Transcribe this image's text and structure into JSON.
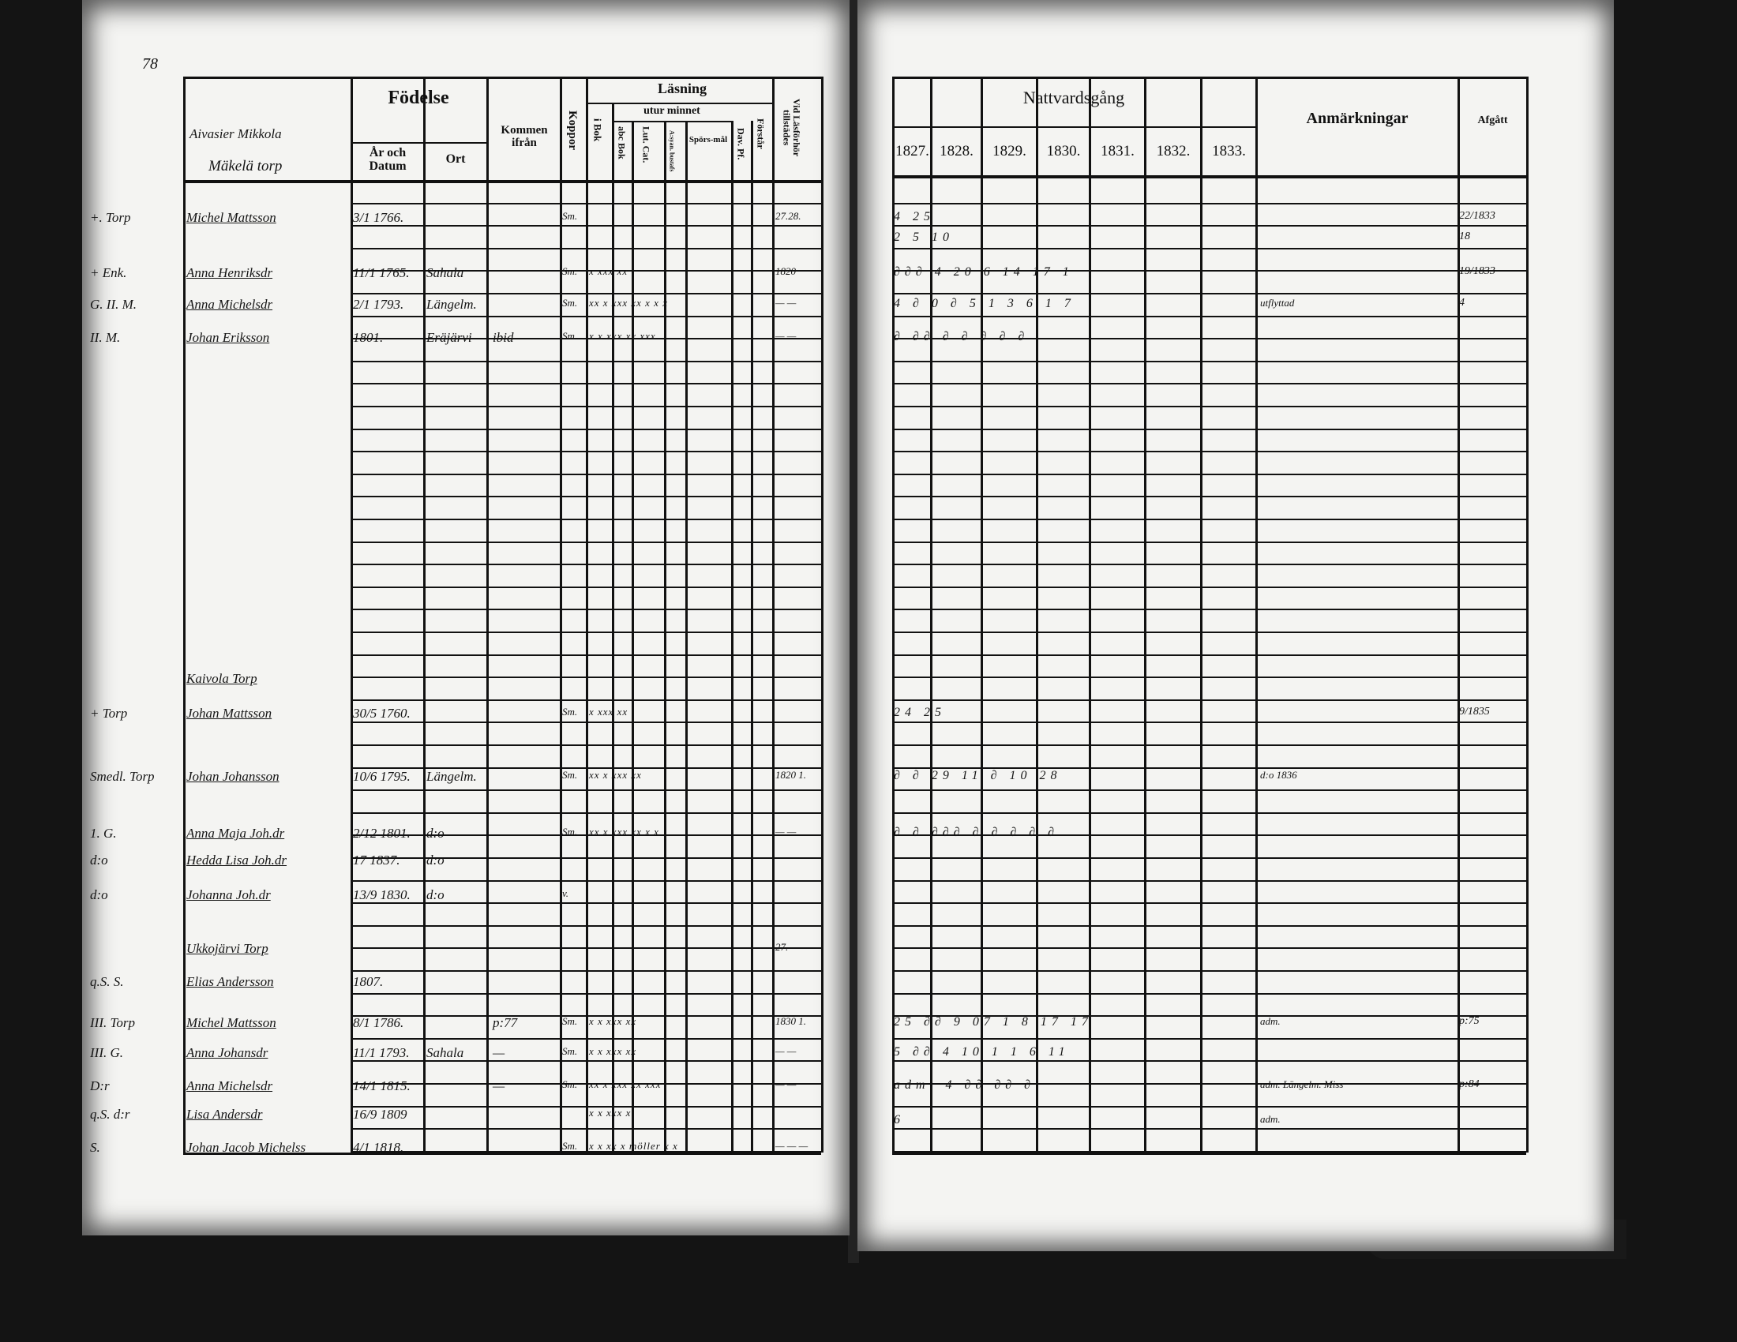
{
  "left_page": {
    "page_number": "78",
    "headers": {
      "name_title": "Aivasier Mikkola",
      "name_subtitle": "Mäkelä torp",
      "fodelse": "Födelse",
      "ar_och_datum": "År och Datum",
      "ort": "Ort",
      "kommen_ifran": "Kommen ifrån",
      "koppor": "Koppor",
      "lasning": "Läsning",
      "i_bok": "i Bok",
      "utur_minnet": "utur minnet",
      "abc_bok": "abc Bok",
      "lut_cat": "Lut. Cat.",
      "a_syan_bustafs": "A:syan. bustafs",
      "sporsmal": "Spörs-mål",
      "dav_pf": "Dav. Pf.",
      "forstar": "Förstår",
      "vid_lasforhor": "Vid Läsförhör tillstädes"
    },
    "rows": [
      {
        "margin": "+. Torp",
        "name": "Michel Mattsson",
        "date": "3/1 1766.",
        "ort": "",
        "kommen": "",
        "koppor": "Sm.",
        "lasning": "",
        "vid": "27.28."
      },
      {
        "margin": "+ Enk.",
        "name": "Anna Henriksdr",
        "date": "11/1 1765.",
        "ort": "Sahala",
        "kommen": "",
        "koppor": "Sm.",
        "lasning": "x xxx xx",
        "vid": "1820"
      },
      {
        "margin": "G. II. M.",
        "name": "Anna Michelsdr",
        "date": "2/1 1793.",
        "ort": "Längelm.",
        "kommen": "",
        "koppor": "Sm.",
        "lasning": "xx x xxx xx x x x",
        "vid": "— —"
      },
      {
        "margin": "II. M.",
        "name": "Johan Eriksson",
        "date": "1801.",
        "ort": "Eräjärvi",
        "kommen": "ibid",
        "koppor": "Sm.",
        "lasning": "x x xxx xx xxx",
        "vid": "— —"
      },
      {
        "margin": "",
        "name": "Kaivola Torp",
        "date": "",
        "ort": "",
        "kommen": "",
        "koppor": "",
        "lasning": "",
        "vid": ""
      },
      {
        "margin": "+ Torp",
        "name": "Johan Mattsson",
        "date": "30/5 1760.",
        "ort": "",
        "kommen": "",
        "koppor": "Sm.",
        "lasning": "x xxx xx",
        "vid": ""
      },
      {
        "margin": "Smedl. Torp",
        "name": "Johan Johansson",
        "date": "10/6 1795.",
        "ort": "Längelm.",
        "kommen": "",
        "koppor": "Sm.",
        "lasning": "xx x xxx xx",
        "vid": "1820 1."
      },
      {
        "margin": "1. G.",
        "name": "Anna Maja Joh.dr",
        "date": "2/12 1801.",
        "ort": "d:o",
        "kommen": "",
        "koppor": "Sm.",
        "lasning": "xx x xxx xx x x",
        "vid": "— —"
      },
      {
        "margin": "d:o",
        "name": "Hedda Lisa Joh.dr",
        "date": "17 1837.",
        "ort": "d:o",
        "kommen": "",
        "koppor": "",
        "lasning": "",
        "vid": ""
      },
      {
        "margin": "d:o",
        "name": "Johanna Joh.dr",
        "date": "13/9 1830.",
        "ort": "d:o",
        "kommen": "",
        "koppor": "v.",
        "lasning": "",
        "vid": ""
      },
      {
        "margin": "",
        "name": "Ukkojärvi Torp",
        "date": "",
        "ort": "",
        "kommen": "",
        "koppor": "",
        "lasning": "",
        "vid": "27."
      },
      {
        "margin": "q.S. S.",
        "name": "Elias Andersson",
        "date": "1807.",
        "ort": "",
        "kommen": "",
        "koppor": "",
        "lasning": "",
        "vid": ""
      },
      {
        "margin": "III. Torp",
        "name": "Michel Mattsson",
        "date": "8/1 1786.",
        "ort": "",
        "kommen": "p:77",
        "koppor": "Sm.",
        "lasning": "x x xxx xx",
        "vid": "1830 1."
      },
      {
        "margin": "III. G.",
        "name": "Anna Johansdr",
        "date": "11/1 1793.",
        "ort": "Sahala",
        "kommen": "—",
        "koppor": "Sm.",
        "lasning": "x x xxx xx",
        "vid": "— —"
      },
      {
        "margin": "D:r",
        "name": "Anna Michelsdr",
        "date": "14/1 1815.",
        "ort": "",
        "kommen": "—",
        "koppor": "Sm.",
        "lasning": "xx x xxx xx xxx",
        "vid": "— —"
      },
      {
        "margin": "q.S. d:r",
        "name": "Lisa Andersdr",
        "date": "16/9 1809",
        "ort": "",
        "kommen": "",
        "koppor": "",
        "lasning": "x x xxx x",
        "vid": ""
      },
      {
        "margin": "S.",
        "name": "Johan Jacob Michelss",
        "date": "4/1 1818.",
        "ort": "",
        "kommen": "",
        "koppor": "Sm.",
        "lasning": "x x xx x möller x x",
        "vid": "— — —"
      }
    ]
  },
  "right_page": {
    "headers": {
      "nattvardsgang": "Nattvardsgång",
      "years": [
        "1827.",
        "1828.",
        "1829.",
        "1830.",
        "1831.",
        "1832.",
        "1833."
      ],
      "anmarkningar": "Anmärkningar",
      "afgatt": "Afgått"
    },
    "rows": [
      {
        "natt": "   4 25",
        "anm": "",
        "afg": "22/1833"
      },
      {
        "natt": "   2 5 10",
        "anm": "",
        "afg": "18"
      },
      {
        "natt": "   ∂∂∂  4  20   6 14  17   1",
        "anm": "",
        "afg": "19/1833"
      },
      {
        "natt": "   4 ∂ 0 ∂  5   1 3  6   1 7",
        "anm": "utflyttad",
        "afg": "4"
      },
      {
        "natt": "   ∂ ∂∂ ∂   ∂ ∂  ∂ ∂",
        "anm": "",
        "afg": ""
      },
      {
        "natt": "24 25",
        "anm": "",
        "afg": "9/1835"
      },
      {
        "natt": "∂ ∂  29  11   ∂  10  28",
        "anm": "d:o 1836",
        "afg": ""
      },
      {
        "natt": "∂ ∂  ∂∂∂  ∂ ∂  ∂ ∂  ∂",
        "anm": "",
        "afg": ""
      },
      {
        "natt": "   25  ∂∂  9 07  1  8 17  17",
        "anm": "adm.",
        "afg": "p:75"
      },
      {
        "natt": "   5  ∂∂  4 10  1  1 6  11",
        "anm": "",
        "afg": ""
      },
      {
        "natt": "   adm. 4 ∂∂  ∂∂  ∂",
        "anm": "adm. Längelm. Miss",
        "afg": "p:84"
      },
      {
        "natt": "   6",
        "anm": "adm.",
        "afg": ""
      }
    ]
  }
}
